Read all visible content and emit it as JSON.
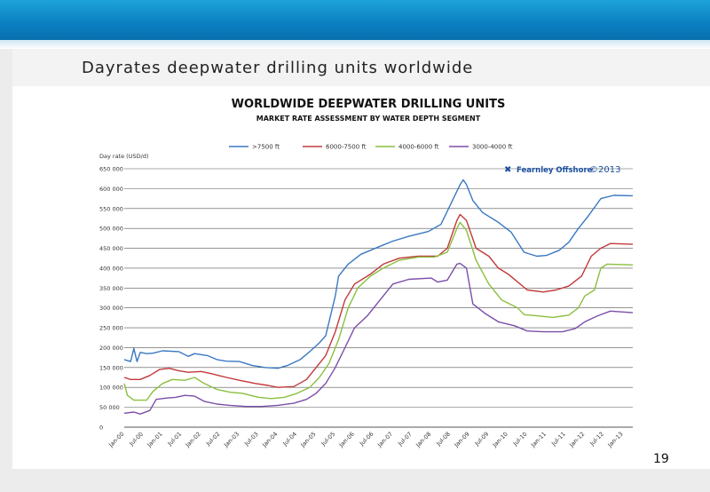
{
  "slide": {
    "title": "Dayrates deepwater drilling units worldwide",
    "page_number": "19"
  },
  "branding": {
    "company": "Fearnley Offshore",
    "copyright": "©2013"
  },
  "chart_data": {
    "type": "line",
    "title": "WORLDWIDE DEEPWATER DRILLING UNITS",
    "subtitle": "MARKET RATE ASSESSMENT BY WATER DEPTH SEGMENT",
    "ylabel": "Day rate (USD/d)",
    "xlabel": "",
    "ylim": [
      0,
      650000
    ],
    "yticks": [
      0,
      50000,
      100000,
      150000,
      200000,
      250000,
      300000,
      350000,
      400000,
      450000,
      500000,
      550000,
      600000,
      650000
    ],
    "ytick_labels": [
      "0",
      "50 000",
      "100 000",
      "150 000",
      "200 000",
      "250 000",
      "300 000",
      "350 000",
      "400 000",
      "450 000",
      "500 000",
      "550 000",
      "600 000",
      "650 000"
    ],
    "xlim": [
      "2000-01",
      "2013-04"
    ],
    "x_tick_labels": [
      "Jan-00",
      "Jul-00",
      "Jan-01",
      "Jul-01",
      "Jan-02",
      "Jul-02",
      "Jan-03",
      "Jul-03",
      "Jan-04",
      "Jul-04",
      "Jan-05",
      "Jul-05",
      "Jan-06",
      "Jul-06",
      "Jan-07",
      "Jul-07",
      "Jan-08",
      "Jul-08",
      "Jan-09",
      "Jul-09",
      "Jan-10",
      "Jul-10",
      "Jan-11",
      "Jul-11",
      "Jan-12",
      "Jul-12",
      "Jan-13"
    ],
    "grid": true,
    "legend_position": "top",
    "series": [
      {
        "name": ">7500 ft",
        "color": "#3a78c2",
        "points": [
          [
            "2000-01",
            170000
          ],
          [
            "2000-03",
            165000
          ],
          [
            "2000-04",
            198000
          ],
          [
            "2000-05",
            165000
          ],
          [
            "2000-06",
            188000
          ],
          [
            "2000-08",
            185000
          ],
          [
            "2000-10",
            186000
          ],
          [
            "2001-01",
            192000
          ],
          [
            "2001-06",
            190000
          ],
          [
            "2001-09",
            178000
          ],
          [
            "2001-11",
            185000
          ],
          [
            "2002-03",
            180000
          ],
          [
            "2002-06",
            170000
          ],
          [
            "2002-09",
            166000
          ],
          [
            "2003-01",
            165000
          ],
          [
            "2003-05",
            155000
          ],
          [
            "2003-09",
            150000
          ],
          [
            "2004-01",
            148000
          ],
          [
            "2004-04",
            155000
          ],
          [
            "2004-08",
            170000
          ],
          [
            "2004-11",
            190000
          ],
          [
            "2005-02",
            212000
          ],
          [
            "2005-04",
            230000
          ],
          [
            "2005-07",
            330000
          ],
          [
            "2005-08",
            380000
          ],
          [
            "2005-11",
            410000
          ],
          [
            "2006-03",
            435000
          ],
          [
            "2006-09",
            455000
          ],
          [
            "2007-01",
            468000
          ],
          [
            "2007-06",
            480000
          ],
          [
            "2007-12",
            492000
          ],
          [
            "2008-04",
            510000
          ],
          [
            "2008-07",
            560000
          ],
          [
            "2008-10",
            610000
          ],
          [
            "2008-11",
            622000
          ],
          [
            "2008-12",
            610000
          ],
          [
            "2009-02",
            570000
          ],
          [
            "2009-05",
            540000
          ],
          [
            "2009-10",
            515000
          ],
          [
            "2010-02",
            490000
          ],
          [
            "2010-06",
            440000
          ],
          [
            "2010-10",
            430000
          ],
          [
            "2011-01",
            432000
          ],
          [
            "2011-05",
            445000
          ],
          [
            "2011-08",
            465000
          ],
          [
            "2011-11",
            500000
          ],
          [
            "2012-02",
            530000
          ],
          [
            "2012-06",
            575000
          ],
          [
            "2012-10",
            583000
          ],
          [
            "2013-04",
            582000
          ]
        ]
      },
      {
        "name": "6000-7500 ft",
        "color": "#c0393b",
        "points": [
          [
            "2000-01",
            125000
          ],
          [
            "2000-03",
            120000
          ],
          [
            "2000-06",
            120000
          ],
          [
            "2000-09",
            130000
          ],
          [
            "2000-12",
            145000
          ],
          [
            "2001-03",
            148000
          ],
          [
            "2001-06",
            142000
          ],
          [
            "2001-09",
            138000
          ],
          [
            "2002-01",
            140000
          ],
          [
            "2002-04",
            135000
          ],
          [
            "2002-09",
            125000
          ],
          [
            "2003-01",
            118000
          ],
          [
            "2003-06",
            110000
          ],
          [
            "2003-10",
            105000
          ],
          [
            "2004-01",
            100000
          ],
          [
            "2004-06",
            102000
          ],
          [
            "2004-10",
            120000
          ],
          [
            "2005-01",
            150000
          ],
          [
            "2005-04",
            180000
          ],
          [
            "2005-07",
            240000
          ],
          [
            "2005-10",
            320000
          ],
          [
            "2006-01",
            360000
          ],
          [
            "2006-06",
            385000
          ],
          [
            "2006-10",
            410000
          ],
          [
            "2007-03",
            425000
          ],
          [
            "2007-09",
            430000
          ],
          [
            "2008-03",
            430000
          ],
          [
            "2008-06",
            450000
          ],
          [
            "2008-09",
            520000
          ],
          [
            "2008-10",
            535000
          ],
          [
            "2008-12",
            520000
          ],
          [
            "2009-03",
            450000
          ],
          [
            "2009-07",
            430000
          ],
          [
            "2009-10",
            400000
          ],
          [
            "2010-01",
            385000
          ],
          [
            "2010-04",
            365000
          ],
          [
            "2010-07",
            345000
          ],
          [
            "2010-12",
            340000
          ],
          [
            "2011-04",
            345000
          ],
          [
            "2011-08",
            355000
          ],
          [
            "2011-12",
            380000
          ],
          [
            "2012-03",
            430000
          ],
          [
            "2012-06",
            450000
          ],
          [
            "2012-09",
            462000
          ],
          [
            "2013-04",
            460000
          ]
        ]
      },
      {
        "name": "4000-6000 ft",
        "color": "#8bbf3f",
        "points": [
          [
            "2000-01",
            110000
          ],
          [
            "2000-02",
            80000
          ],
          [
            "2000-04",
            68000
          ],
          [
            "2000-08",
            68000
          ],
          [
            "2000-10",
            90000
          ],
          [
            "2001-01",
            110000
          ],
          [
            "2001-04",
            120000
          ],
          [
            "2001-08",
            118000
          ],
          [
            "2001-11",
            125000
          ],
          [
            "2002-02",
            110000
          ],
          [
            "2002-06",
            95000
          ],
          [
            "2002-10",
            88000
          ],
          [
            "2003-02",
            85000
          ],
          [
            "2003-07",
            75000
          ],
          [
            "2003-11",
            72000
          ],
          [
            "2004-03",
            75000
          ],
          [
            "2004-07",
            85000
          ],
          [
            "2004-11",
            100000
          ],
          [
            "2005-02",
            125000
          ],
          [
            "2005-05",
            160000
          ],
          [
            "2005-08",
            220000
          ],
          [
            "2005-11",
            300000
          ],
          [
            "2006-02",
            350000
          ],
          [
            "2006-06",
            380000
          ],
          [
            "2006-10",
            400000
          ],
          [
            "2007-03",
            420000
          ],
          [
            "2007-09",
            428000
          ],
          [
            "2008-02",
            428000
          ],
          [
            "2008-06",
            440000
          ],
          [
            "2008-09",
            500000
          ],
          [
            "2008-10",
            515000
          ],
          [
            "2008-12",
            495000
          ],
          [
            "2009-03",
            420000
          ],
          [
            "2009-07",
            360000
          ],
          [
            "2009-11",
            320000
          ],
          [
            "2010-04",
            300000
          ],
          [
            "2010-06",
            283000
          ],
          [
            "2010-10",
            280000
          ],
          [
            "2011-03",
            276000
          ],
          [
            "2011-08",
            282000
          ],
          [
            "2011-11",
            300000
          ],
          [
            "2012-01",
            330000
          ],
          [
            "2012-04",
            345000
          ],
          [
            "2012-06",
            400000
          ],
          [
            "2012-08",
            410000
          ],
          [
            "2013-04",
            408000
          ]
        ]
      },
      {
        "name": "3000-4000 ft",
        "color": "#7b4ea8",
        "points": [
          [
            "2000-01",
            35000
          ],
          [
            "2000-04",
            38000
          ],
          [
            "2000-06",
            33000
          ],
          [
            "2000-09",
            42000
          ],
          [
            "2000-11",
            70000
          ],
          [
            "2001-02",
            73000
          ],
          [
            "2001-05",
            75000
          ],
          [
            "2001-08",
            80000
          ],
          [
            "2001-11",
            78000
          ],
          [
            "2002-02",
            65000
          ],
          [
            "2002-06",
            58000
          ],
          [
            "2002-10",
            55000
          ],
          [
            "2003-03",
            52000
          ],
          [
            "2003-08",
            52000
          ],
          [
            "2004-01",
            55000
          ],
          [
            "2004-06",
            60000
          ],
          [
            "2004-10",
            70000
          ],
          [
            "2005-01",
            85000
          ],
          [
            "2005-04",
            110000
          ],
          [
            "2005-07",
            150000
          ],
          [
            "2005-10",
            200000
          ],
          [
            "2006-01",
            250000
          ],
          [
            "2006-05",
            280000
          ],
          [
            "2006-09",
            320000
          ],
          [
            "2007-01",
            360000
          ],
          [
            "2007-06",
            372000
          ],
          [
            "2008-01",
            375000
          ],
          [
            "2008-03",
            365000
          ],
          [
            "2008-06",
            370000
          ],
          [
            "2008-09",
            410000
          ],
          [
            "2008-10",
            412000
          ],
          [
            "2008-12",
            400000
          ],
          [
            "2009-02",
            310000
          ],
          [
            "2009-06",
            285000
          ],
          [
            "2009-10",
            265000
          ],
          [
            "2010-03",
            255000
          ],
          [
            "2010-07",
            242000
          ],
          [
            "2010-12",
            240000
          ],
          [
            "2011-06",
            240000
          ],
          [
            "2011-10",
            248000
          ],
          [
            "2012-01",
            265000
          ],
          [
            "2012-05",
            280000
          ],
          [
            "2012-09",
            292000
          ],
          [
            "2013-04",
            288000
          ]
        ]
      }
    ]
  }
}
